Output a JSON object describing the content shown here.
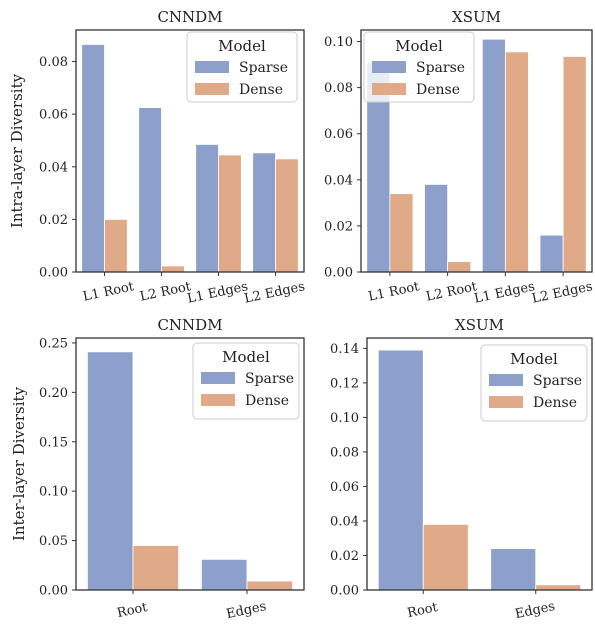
{
  "colors": {
    "sparse": "#8da0cb",
    "dense": "#e0a987",
    "axes": "#333333"
  },
  "chart_data": [
    {
      "type": "bar",
      "title": "CNNDM",
      "ylabel": "Intra-layer Diversity",
      "categories": [
        "L1 Root",
        "L2 Root",
        "L1 Edges",
        "L2 Edges"
      ],
      "series": [
        {
          "name": "Sparse",
          "values": [
            0.0865,
            0.0625,
            0.0485,
            0.0453
          ]
        },
        {
          "name": "Dense",
          "values": [
            0.02,
            0.0023,
            0.0445,
            0.043
          ]
        }
      ],
      "ylim": [
        0,
        0.092
      ],
      "yticks": [
        "0.00",
        "0.02",
        "0.04",
        "0.06",
        "0.08"
      ],
      "ytick_values": [
        0,
        0.02,
        0.04,
        0.06,
        0.08
      ],
      "legend_title": "Model",
      "legend": "top-right",
      "grid": false
    },
    {
      "type": "bar",
      "title": "XSUM",
      "ylabel": "",
      "categories": [
        "L1 Root",
        "L2 Root",
        "L1 Edges",
        "L2 Edges"
      ],
      "series": [
        {
          "name": "Sparse",
          "values": [
            0.091,
            0.038,
            0.101,
            0.016
          ]
        },
        {
          "name": "Dense",
          "values": [
            0.034,
            0.0045,
            0.0955,
            0.0935
          ]
        }
      ],
      "ylim": [
        0,
        0.105
      ],
      "yticks": [
        "0.00",
        "0.02",
        "0.04",
        "0.06",
        "0.08",
        "0.10"
      ],
      "ytick_values": [
        0,
        0.02,
        0.04,
        0.06,
        0.08,
        0.1
      ],
      "legend_title": "Model",
      "legend": "top-left",
      "grid": false
    },
    {
      "type": "bar",
      "title": "CNNDM",
      "ylabel": "Inter-layer Diversity",
      "categories": [
        "Root",
        "Edges"
      ],
      "series": [
        {
          "name": "Sparse",
          "values": [
            0.241,
            0.031
          ]
        },
        {
          "name": "Dense",
          "values": [
            0.045,
            0.009
          ]
        }
      ],
      "ylim": [
        0,
        0.255
      ],
      "yticks": [
        "0.00",
        "0.05",
        "0.10",
        "0.15",
        "0.20",
        "0.25"
      ],
      "ytick_values": [
        0,
        0.05,
        0.1,
        0.15,
        0.2,
        0.25
      ],
      "legend_title": "Model",
      "legend": "top-right",
      "grid": false
    },
    {
      "type": "bar",
      "title": "XSUM",
      "ylabel": "",
      "categories": [
        "Root",
        "Edges"
      ],
      "series": [
        {
          "name": "Sparse",
          "values": [
            0.139,
            0.024
          ]
        },
        {
          "name": "Dense",
          "values": [
            0.038,
            0.003
          ]
        }
      ],
      "ylim": [
        0,
        0.146
      ],
      "yticks": [
        "0.00",
        "0.02",
        "0.04",
        "0.06",
        "0.08",
        "0.10",
        "0.12",
        "0.14"
      ],
      "ytick_values": [
        0,
        0.02,
        0.04,
        0.06,
        0.08,
        0.1,
        0.12,
        0.14
      ],
      "legend_title": "Model",
      "legend": "top-right",
      "grid": false
    }
  ]
}
